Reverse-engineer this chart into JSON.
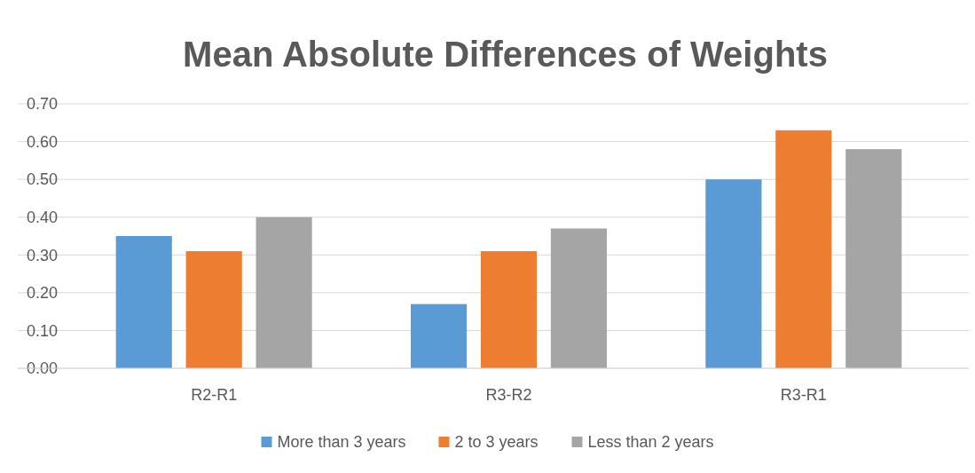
{
  "chart_data": {
    "type": "bar",
    "title": "Mean Absolute Differences of Weights",
    "categories": [
      "R2-R1",
      "R3-R2",
      "R3-R1"
    ],
    "series": [
      {
        "name": "More than 3 years",
        "color": "#5b9bd5",
        "values": [
          0.35,
          0.17,
          0.5
        ]
      },
      {
        "name": "2 to 3 years",
        "color": "#ed7d31",
        "values": [
          0.31,
          0.31,
          0.63
        ]
      },
      {
        "name": "Less than 2 years",
        "color": "#a5a5a5",
        "values": [
          0.4,
          0.37,
          0.58
        ]
      }
    ],
    "ylim": [
      0,
      0.7
    ],
    "yticks": [
      {
        "value": 0,
        "label": "0.00"
      },
      {
        "value": 0.1,
        "label": "0.10"
      },
      {
        "value": 0.2,
        "label": "0.20"
      },
      {
        "value": 0.3,
        "label": "0.30"
      },
      {
        "value": 0.4,
        "label": "0.40"
      },
      {
        "value": 0.5,
        "label": "0.50"
      },
      {
        "value": 0.6,
        "label": "0.60"
      },
      {
        "value": 0.7,
        "label": "0.70"
      }
    ],
    "grid": "y",
    "legend": "bottom"
  }
}
